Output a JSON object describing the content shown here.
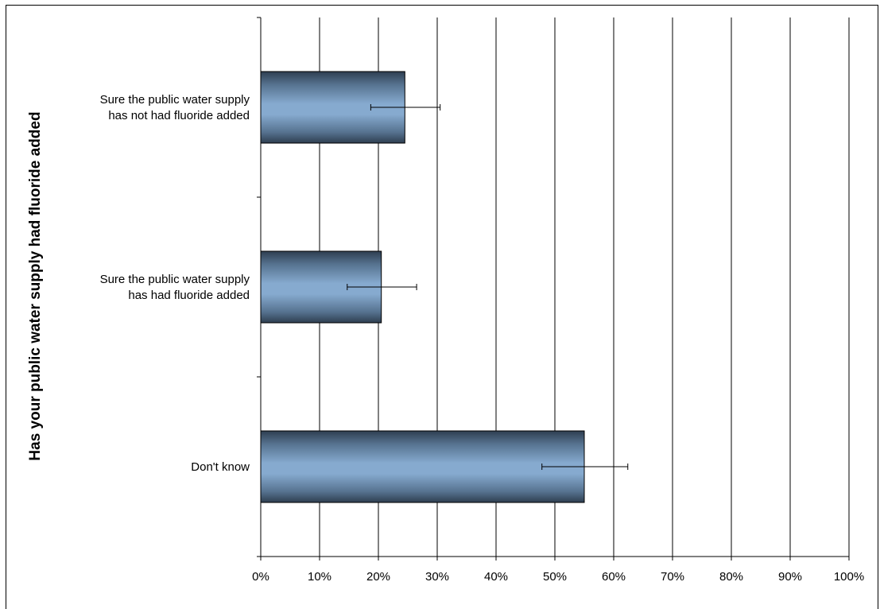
{
  "chart_data": {
    "type": "bar",
    "orientation": "horizontal",
    "title": "",
    "ylabel": "Has your public water supply had fluoride added",
    "xlabel": "",
    "categories": [
      [
        "Sure the public water supply",
        "has not had fluoride added"
      ],
      [
        "Sure the public water supply",
        "has had fluoride added"
      ],
      [
        "Don't know"
      ]
    ],
    "values": [
      24.5,
      20.5,
      55
    ],
    "error_low": [
      18.7,
      14.7,
      47.8
    ],
    "error_high": [
      30.5,
      26.5,
      62.4
    ],
    "xlim": [
      0,
      100
    ],
    "x_ticks": [
      "0%",
      "10%",
      "20%",
      "30%",
      "40%",
      "50%",
      "60%",
      "70%",
      "80%",
      "90%",
      "100%"
    ],
    "x_tick_values": [
      0,
      10,
      20,
      30,
      40,
      50,
      60,
      70,
      80,
      90,
      100
    ],
    "grid": "vertical",
    "legend": "none",
    "colors": {
      "bar_light": "#86aacf",
      "bar_dark": "#2e3e50",
      "bar_border": "#000000",
      "grid": "#000000"
    }
  }
}
